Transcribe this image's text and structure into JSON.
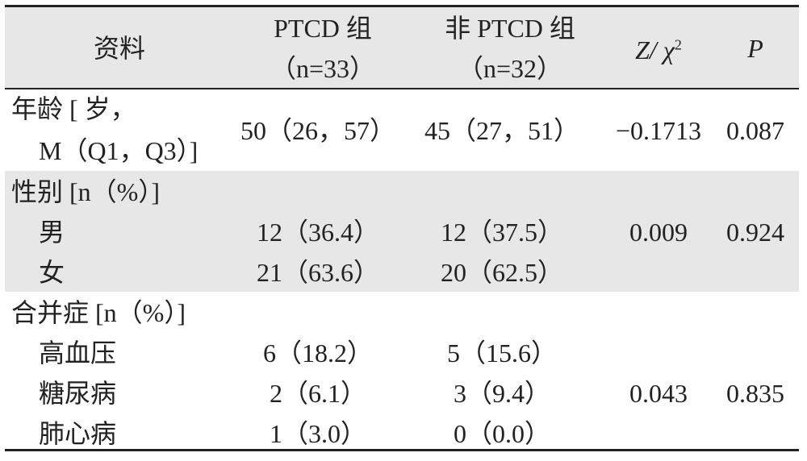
{
  "table": {
    "header": {
      "item": "资料",
      "ptcd": [
        "PTCD 组",
        "（n=33）"
      ],
      "non_ptcd": [
        "非 PTCD 组",
        "（n=32）"
      ],
      "stat": [
        "Z/ χ",
        "2"
      ],
      "p": "P"
    },
    "groups": [
      {
        "label": [
          "年龄 [ 岁，",
          "M（Q1，Q3）]"
        ],
        "ptcd": "50（26，57）",
        "non_ptcd": "45（27，51）",
        "stat": "−0.1713",
        "p": "0.087"
      },
      {
        "label": "性别 [n（%）]",
        "rows": [
          {
            "label": "男",
            "ptcd": "12（36.4）",
            "non_ptcd": "12（37.5）"
          },
          {
            "label": "女",
            "ptcd": "21（63.6）",
            "non_ptcd": "20（62.5）"
          }
        ],
        "stat": "0.009",
        "p": "0.924"
      },
      {
        "label": "合并症 [n（%）]",
        "rows": [
          {
            "label": "高血压",
            "ptcd": "6（18.2）",
            "non_ptcd": "5（15.6）"
          },
          {
            "label": "糖尿病",
            "ptcd": "2（6.1）",
            "non_ptcd": "3（9.4）"
          },
          {
            "label": "肺心病",
            "ptcd": "1（3.0）",
            "non_ptcd": "0（0.0）"
          }
        ],
        "stat": "0.043",
        "p": "0.835"
      }
    ]
  }
}
